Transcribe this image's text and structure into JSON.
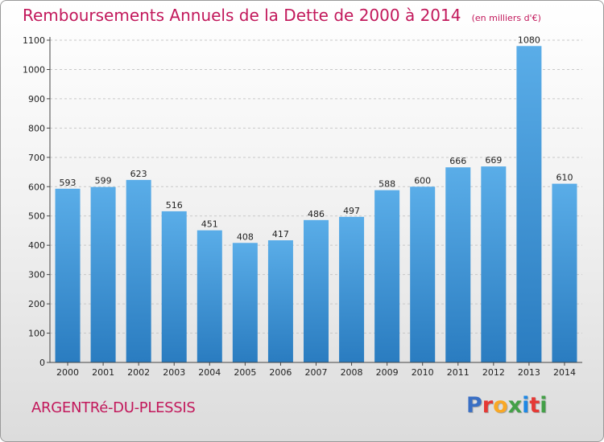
{
  "header": {
    "title": "Remboursements Annuels de la Dette de 2000 à 2014",
    "subtitle": "(en milliers d'€)"
  },
  "footer": {
    "city": "ARGENTRé-DU-PLESSIS",
    "logo_letters": [
      "P",
      "r",
      "o",
      "x",
      "i",
      "t",
      "i"
    ],
    "logo_colors": [
      "#3a6fc4",
      "#e53935",
      "#f9a825",
      "#43a047",
      "#1e88e5",
      "#e53935",
      "#43a047"
    ]
  },
  "chart_data": {
    "type": "bar",
    "categories": [
      "2000",
      "2001",
      "2002",
      "2003",
      "2004",
      "2005",
      "2006",
      "2007",
      "2008",
      "2009",
      "2010",
      "2011",
      "2012",
      "2013",
      "2014"
    ],
    "values": [
      593,
      599,
      623,
      516,
      451,
      408,
      417,
      486,
      497,
      588,
      600,
      666,
      669,
      1080,
      610
    ],
    "value_labels": [
      "593",
      "599",
      "623",
      "516",
      "451",
      "408",
      "417",
      "486",
      "497",
      "588",
      "600",
      "666",
      "669",
      "1080",
      "610"
    ],
    "yticks": [
      0,
      100,
      200,
      300,
      400,
      500,
      600,
      700,
      800,
      900,
      1000,
      1100
    ],
    "ytick_labels": [
      "0",
      "100",
      "200",
      "300",
      "400",
      "500",
      "600",
      "700",
      "800",
      "900",
      "1000",
      "1100"
    ],
    "ylim": [
      0,
      1100
    ],
    "grid": true,
    "bar_color_top": "#5aade8",
    "bar_color_bottom": "#2a7cc0"
  }
}
